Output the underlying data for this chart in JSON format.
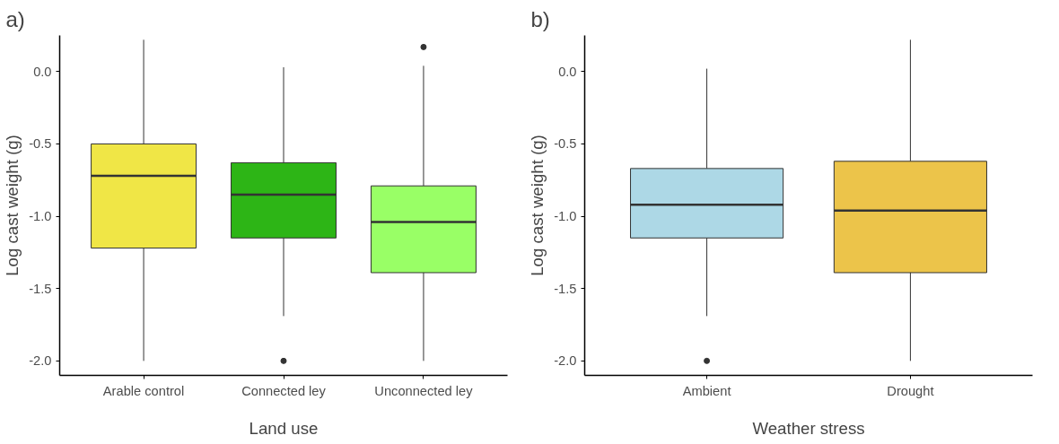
{
  "chart_data": [
    {
      "type": "box",
      "annotations": [
        "a)"
      ],
      "xlabel": "Land use",
      "ylabel": "Log cast weight (g)",
      "categories": [
        "Arable control",
        "Connected ley",
        "Unconnected ley"
      ],
      "colors": [
        "#f0e646",
        "#2db516",
        "#99ff66"
      ],
      "boxes": [
        {
          "low": -2.0,
          "q1": -1.22,
          "median": -0.72,
          "q3": -0.5,
          "high": 0.22
        },
        {
          "low": -1.69,
          "q1": -1.15,
          "median": -0.85,
          "q3": -0.63,
          "high": 0.03,
          "outliers": [
            -2.0
          ]
        },
        {
          "low": -2.0,
          "q1": -1.39,
          "median": -1.04,
          "q3": -0.79,
          "high": 0.04,
          "outliers": [
            0.17
          ]
        }
      ],
      "ylim": [
        -2.1,
        0.25
      ],
      "yticks": [
        {
          "value": -2,
          "label": "-2.0"
        },
        {
          "value": -1.5,
          "label": "-1.5"
        },
        {
          "value": -1,
          "label": "-1.0"
        },
        {
          "value": -0.5,
          "label": "-0.5"
        },
        {
          "value": 0,
          "label": "0.0"
        }
      ],
      "grid": false
    },
    {
      "type": "box",
      "annotations": [
        "b)"
      ],
      "xlabel": "Weather stress",
      "ylabel": "Log cast weight (g)",
      "categories": [
        "Ambient",
        "Drought"
      ],
      "colors": [
        "#add8e6",
        "#ecc44a"
      ],
      "boxes": [
        {
          "low": -1.69,
          "q1": -1.15,
          "median": -0.92,
          "q3": -0.67,
          "high": 0.02,
          "outliers": [
            -2.0
          ]
        },
        {
          "low": -2.0,
          "q1": -1.39,
          "median": -0.96,
          "q3": -0.62,
          "high": 0.22
        }
      ],
      "ylim": [
        -2.1,
        0.25
      ],
      "yticks": [
        {
          "value": -2,
          "label": "-2.0"
        },
        {
          "value": -1.5,
          "label": "-1.5"
        },
        {
          "value": -1,
          "label": "-1.0"
        },
        {
          "value": -0.5,
          "label": "-0.5"
        },
        {
          "value": 0,
          "label": "0.0"
        }
      ],
      "grid": false
    }
  ]
}
